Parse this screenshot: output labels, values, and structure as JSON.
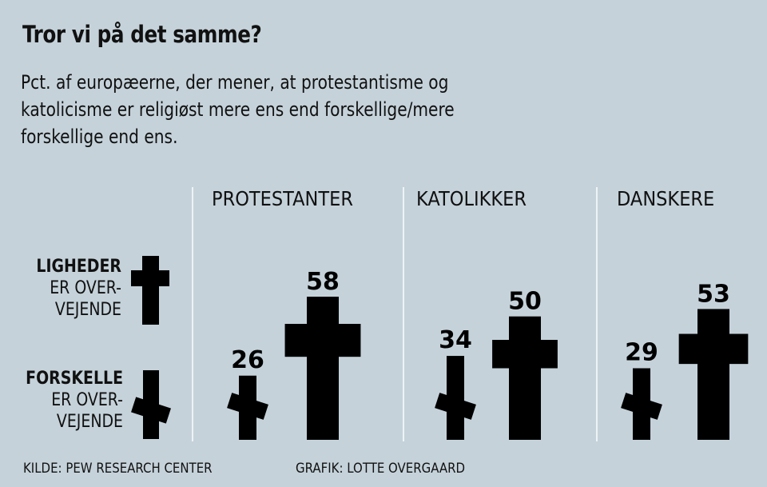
{
  "title": "Tror vi på det samme?",
  "subtitle_lines": [
    "Pct. af europæerne, der mener, at protestantisme og",
    "katolicisme er religiøst mere ens end forskellige/mere",
    "forskellige end ens."
  ],
  "legend": {
    "similar": {
      "bold": "LIGHEDER",
      "line2": "ER OVER-",
      "line3": "VEJENDE",
      "icon": "upright-cross-icon"
    },
    "different": {
      "bold": "FORSKELLE",
      "line2": "ER OVER-",
      "line3": "VEJENDE",
      "icon": "broken-cross-icon"
    }
  },
  "footer": {
    "source": "KILDE: PEW RESEARCH CENTER",
    "credit": "GRAFIK: LOTTE OVERGAARD"
  },
  "colors": {
    "background": "#c5d2da",
    "ink": "#000000",
    "divider": "#eef3f6"
  },
  "chart_data": {
    "type": "bar",
    "title": "Tror vi på det samme?",
    "subtitle": "Pct. af europæerne, der mener, at protestantisme og katolicisme er religiøst mere ens end forskellige/mere forskellige end ens.",
    "categories": [
      "PROTESTANTER",
      "KATOLIKKER",
      "DANSKERE"
    ],
    "series": [
      {
        "name": "FORSKELLE ER OVERVEJENDE",
        "values": [
          26,
          34,
          29
        ]
      },
      {
        "name": "LIGHEDER ER OVERVEJENDE",
        "values": [
          58,
          50,
          53
        ]
      }
    ],
    "value_labels": [
      [
        "26",
        "58"
      ],
      [
        "34",
        "50"
      ],
      [
        "29",
        "53"
      ]
    ],
    "unit": "pct.",
    "xlabel": "",
    "ylabel": "",
    "ylim": [
      0,
      60
    ],
    "grid": false,
    "legend_position": "left"
  }
}
